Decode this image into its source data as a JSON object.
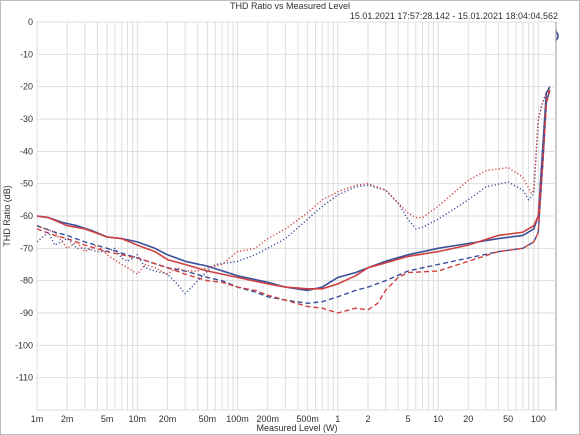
{
  "chart_data": {
    "type": "line",
    "title": "THD Ratio vs Measured Level",
    "subtitle": "15.01.2021 17:57:28.142 - 15.01.2021 18:04:04.562",
    "xlabel": "Measured Level (W)",
    "ylabel": "THD Ratio (dB)",
    "xscale": "log",
    "xlim": [
      0.001,
      150
    ],
    "ylim": [
      -120,
      0
    ],
    "grid": true,
    "logo_text": "AP",
    "x_ticks": [
      {
        "v": 0.001,
        "label": "1m"
      },
      {
        "v": 0.002,
        "label": "2m"
      },
      {
        "v": 0.005,
        "label": "5m"
      },
      {
        "v": 0.01,
        "label": "10m"
      },
      {
        "v": 0.02,
        "label": "20m"
      },
      {
        "v": 0.05,
        "label": "50m"
      },
      {
        "v": 0.1,
        "label": "100m"
      },
      {
        "v": 0.2,
        "label": "200m"
      },
      {
        "v": 0.5,
        "label": "500m"
      },
      {
        "v": 1,
        "label": "1"
      },
      {
        "v": 2,
        "label": "2"
      },
      {
        "v": 5,
        "label": "5"
      },
      {
        "v": 10,
        "label": "10"
      },
      {
        "v": 20,
        "label": "20"
      },
      {
        "v": 50,
        "label": "50"
      },
      {
        "v": 100,
        "label": "100"
      }
    ],
    "y_ticks": [
      {
        "v": 0,
        "label": "0"
      },
      {
        "v": -10,
        "label": "-10"
      },
      {
        "v": -20,
        "label": "-20"
      },
      {
        "v": -30,
        "label": "-30"
      },
      {
        "v": -40,
        "label": "-40"
      },
      {
        "v": -50,
        "label": "-50"
      },
      {
        "v": -60,
        "label": "-60"
      },
      {
        "v": -70,
        "label": "-70"
      },
      {
        "v": -80,
        "label": "-80"
      },
      {
        "v": -90,
        "label": "-90"
      },
      {
        "v": -100,
        "label": "-100"
      },
      {
        "v": -110,
        "label": "-110"
      }
    ],
    "series": [
      {
        "color": "#3a4f9a",
        "style": "solid",
        "points": [
          [
            0.001,
            -60
          ],
          [
            0.0013,
            -60.5
          ],
          [
            0.0018,
            -62
          ],
          [
            0.0025,
            -63
          ],
          [
            0.0035,
            -64.5
          ],
          [
            0.005,
            -66.5
          ],
          [
            0.007,
            -67
          ],
          [
            0.01,
            -68
          ],
          [
            0.015,
            -70
          ],
          [
            0.02,
            -72
          ],
          [
            0.03,
            -74
          ],
          [
            0.05,
            -75.5
          ],
          [
            0.1,
            -78.5
          ],
          [
            0.2,
            -80.5
          ],
          [
            0.3,
            -82
          ],
          [
            0.5,
            -83
          ],
          [
            0.7,
            -82
          ],
          [
            1,
            -79
          ],
          [
            1.5,
            -77.5
          ],
          [
            2,
            -76
          ],
          [
            3,
            -74
          ],
          [
            5,
            -72
          ],
          [
            10,
            -70
          ],
          [
            20,
            -68.5
          ],
          [
            40,
            -67
          ],
          [
            70,
            -66
          ],
          [
            90,
            -64
          ],
          [
            100,
            -60
          ],
          [
            110,
            -40
          ],
          [
            120,
            -22
          ],
          [
            130,
            -20
          ]
        ]
      },
      {
        "color": "#d04040",
        "style": "solid",
        "points": [
          [
            0.001,
            -60
          ],
          [
            0.0013,
            -60.5
          ],
          [
            0.002,
            -63
          ],
          [
            0.003,
            -64
          ],
          [
            0.005,
            -66.5
          ],
          [
            0.007,
            -67
          ],
          [
            0.01,
            -69
          ],
          [
            0.015,
            -71
          ],
          [
            0.02,
            -73.5
          ],
          [
            0.03,
            -75
          ],
          [
            0.05,
            -77
          ],
          [
            0.1,
            -79
          ],
          [
            0.2,
            -81
          ],
          [
            0.3,
            -82
          ],
          [
            0.5,
            -82.5
          ],
          [
            0.7,
            -82.5
          ],
          [
            1,
            -81
          ],
          [
            1.5,
            -78.5
          ],
          [
            2,
            -76
          ],
          [
            3,
            -74.5
          ],
          [
            5,
            -72.5
          ],
          [
            10,
            -71
          ],
          [
            20,
            -69
          ],
          [
            40,
            -66
          ],
          [
            70,
            -65
          ],
          [
            90,
            -63
          ],
          [
            100,
            -60
          ],
          [
            110,
            -45
          ],
          [
            120,
            -25
          ],
          [
            130,
            -21
          ]
        ]
      },
      {
        "color": "#3a4f9a",
        "style": "dashed",
        "points": [
          [
            0.001,
            -63
          ],
          [
            0.0015,
            -65
          ],
          [
            0.002,
            -66
          ],
          [
            0.003,
            -68
          ],
          [
            0.005,
            -70
          ],
          [
            0.007,
            -71.5
          ],
          [
            0.01,
            -73
          ],
          [
            0.02,
            -76
          ],
          [
            0.03,
            -77
          ],
          [
            0.05,
            -79
          ],
          [
            0.07,
            -80
          ],
          [
            0.1,
            -82
          ],
          [
            0.15,
            -83.5
          ],
          [
            0.2,
            -85
          ],
          [
            0.3,
            -86
          ],
          [
            0.5,
            -87
          ],
          [
            0.7,
            -86.5
          ],
          [
            1,
            -85
          ],
          [
            1.5,
            -83
          ],
          [
            2,
            -82
          ],
          [
            3,
            -80
          ],
          [
            5,
            -77
          ],
          [
            10,
            -75
          ],
          [
            20,
            -73
          ],
          [
            40,
            -71
          ],
          [
            70,
            -70
          ],
          [
            90,
            -68
          ],
          [
            100,
            -65
          ],
          [
            110,
            -45
          ],
          [
            120,
            -25
          ],
          [
            130,
            -21
          ]
        ]
      },
      {
        "color": "#d04040",
        "style": "dashed",
        "points": [
          [
            0.001,
            -64
          ],
          [
            0.0015,
            -66
          ],
          [
            0.002,
            -67
          ],
          [
            0.003,
            -69
          ],
          [
            0.005,
            -71
          ],
          [
            0.007,
            -72
          ],
          [
            0.01,
            -73
          ],
          [
            0.02,
            -76
          ],
          [
            0.03,
            -78
          ],
          [
            0.05,
            -80
          ],
          [
            0.07,
            -80.5
          ],
          [
            0.1,
            -82
          ],
          [
            0.15,
            -83
          ],
          [
            0.2,
            -84.5
          ],
          [
            0.3,
            -86
          ],
          [
            0.5,
            -88
          ],
          [
            0.7,
            -88.5
          ],
          [
            1,
            -90
          ],
          [
            1.5,
            -88.5
          ],
          [
            2,
            -89
          ],
          [
            2.5,
            -87
          ],
          [
            3,
            -83
          ],
          [
            4,
            -79
          ],
          [
            5,
            -77.5
          ],
          [
            10,
            -77
          ],
          [
            20,
            -74
          ],
          [
            40,
            -71
          ],
          [
            70,
            -70
          ],
          [
            90,
            -68
          ],
          [
            100,
            -65
          ],
          [
            110,
            -45
          ],
          [
            120,
            -25
          ],
          [
            130,
            -21
          ]
        ]
      },
      {
        "color": "#3a4f9a",
        "style": "dotted",
        "points": [
          [
            0.001,
            -68
          ],
          [
            0.0013,
            -65
          ],
          [
            0.0015,
            -69
          ],
          [
            0.002,
            -67
          ],
          [
            0.0025,
            -70
          ],
          [
            0.003,
            -70
          ],
          [
            0.004,
            -71
          ],
          [
            0.005,
            -71
          ],
          [
            0.006,
            -70
          ],
          [
            0.007,
            -73
          ],
          [
            0.008,
            -74
          ],
          [
            0.01,
            -72
          ],
          [
            0.012,
            -76
          ],
          [
            0.015,
            -77
          ],
          [
            0.02,
            -78
          ],
          [
            0.025,
            -81
          ],
          [
            0.03,
            -84
          ],
          [
            0.035,
            -82
          ],
          [
            0.04,
            -80
          ],
          [
            0.05,
            -77
          ],
          [
            0.06,
            -75
          ],
          [
            0.1,
            -74
          ],
          [
            0.15,
            -72
          ],
          [
            0.2,
            -70
          ],
          [
            0.3,
            -67
          ],
          [
            0.5,
            -61
          ],
          [
            0.7,
            -57
          ],
          [
            1,
            -53.5
          ],
          [
            1.5,
            -51
          ],
          [
            2,
            -50.5
          ],
          [
            3,
            -52
          ],
          [
            4,
            -56
          ],
          [
            5,
            -61
          ],
          [
            6,
            -64
          ],
          [
            7,
            -63.5
          ],
          [
            10,
            -61
          ],
          [
            20,
            -55
          ],
          [
            30,
            -51
          ],
          [
            50,
            -49.5
          ],
          [
            70,
            -52
          ],
          [
            80,
            -55
          ],
          [
            90,
            -53
          ],
          [
            100,
            -30
          ],
          [
            110,
            -25
          ],
          [
            120,
            -22
          ],
          [
            130,
            -21
          ]
        ]
      },
      {
        "color": "#d04040",
        "style": "dotted",
        "points": [
          [
            0.001,
            -63
          ],
          [
            0.0015,
            -65
          ],
          [
            0.002,
            -70
          ],
          [
            0.0025,
            -68
          ],
          [
            0.003,
            -71
          ],
          [
            0.004,
            -69
          ],
          [
            0.005,
            -72
          ],
          [
            0.007,
            -75
          ],
          [
            0.008,
            -76
          ],
          [
            0.01,
            -78
          ],
          [
            0.012,
            -75
          ],
          [
            0.015,
            -76
          ],
          [
            0.02,
            -78
          ],
          [
            0.025,
            -76
          ],
          [
            0.03,
            -77
          ],
          [
            0.04,
            -77
          ],
          [
            0.05,
            -76
          ],
          [
            0.07,
            -75
          ],
          [
            0.1,
            -71
          ],
          [
            0.15,
            -70
          ],
          [
            0.2,
            -67
          ],
          [
            0.3,
            -64
          ],
          [
            0.5,
            -59
          ],
          [
            0.7,
            -55
          ],
          [
            1,
            -52.5
          ],
          [
            1.5,
            -50.5
          ],
          [
            2,
            -50
          ],
          [
            3,
            -52
          ],
          [
            4,
            -56
          ],
          [
            5,
            -59
          ],
          [
            6,
            -60.5
          ],
          [
            7,
            -60.5
          ],
          [
            10,
            -57
          ],
          [
            20,
            -49
          ],
          [
            30,
            -46
          ],
          [
            50,
            -45
          ],
          [
            70,
            -48
          ],
          [
            85,
            -53
          ],
          [
            90,
            -52
          ],
          [
            100,
            -30
          ],
          [
            110,
            -25
          ],
          [
            120,
            -22
          ],
          [
            130,
            -21
          ]
        ]
      }
    ]
  }
}
